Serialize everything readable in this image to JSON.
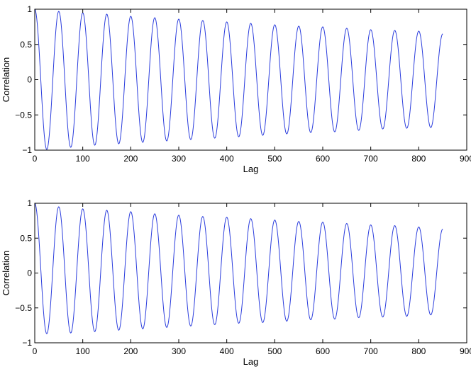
{
  "chart_data": [
    {
      "type": "line",
      "title": "",
      "xlabel": "Lag",
      "ylabel": "Correlation",
      "xlim": [
        0,
        900
      ],
      "ylim": [
        -1,
        1
      ],
      "xticks": [
        0,
        100,
        200,
        300,
        400,
        500,
        600,
        700,
        800,
        900
      ],
      "yticks": [
        -1,
        -0.5,
        0,
        0.5,
        1
      ],
      "xtick_labels": [
        "0",
        "100",
        "200",
        "300",
        "400",
        "500",
        "600",
        "700",
        "800",
        "900"
      ],
      "ytick_labels": [
        "−1",
        "−0.5",
        "0",
        "0.5",
        "1"
      ],
      "grid": false,
      "series": [
        {
          "color": "#2b3ddd",
          "x": [
            0,
            25,
            50,
            75,
            100,
            125,
            150,
            175,
            200,
            225,
            250,
            275,
            300,
            325,
            350,
            375,
            400,
            425,
            450,
            475,
            500,
            525,
            550,
            575,
            600,
            625,
            650,
            675,
            700,
            725,
            750,
            775,
            800,
            825,
            850
          ],
          "y": [
            1.0,
            -0.99,
            0.97,
            -0.96,
            0.95,
            -0.93,
            0.93,
            -0.91,
            0.9,
            -0.89,
            0.88,
            -0.87,
            0.86,
            -0.85,
            0.84,
            -0.83,
            0.82,
            -0.81,
            0.8,
            -0.79,
            0.78,
            -0.77,
            0.76,
            -0.75,
            0.75,
            -0.74,
            0.73,
            -0.72,
            0.71,
            -0.7,
            0.7,
            -0.69,
            0.69,
            -0.68,
            0.65
          ]
        }
      ]
    },
    {
      "type": "line",
      "title": "",
      "xlabel": "Lag",
      "ylabel": "Correlation",
      "xlim": [
        0,
        900
      ],
      "ylim": [
        -1,
        1
      ],
      "xticks": [
        0,
        100,
        200,
        300,
        400,
        500,
        600,
        700,
        800,
        900
      ],
      "yticks": [
        -1,
        -0.5,
        0,
        0.5,
        1
      ],
      "xtick_labels": [
        "0",
        "100",
        "200",
        "300",
        "400",
        "500",
        "600",
        "700",
        "800",
        "900"
      ],
      "ytick_labels": [
        "−1",
        "−0.5",
        "0",
        "0.5",
        "1"
      ],
      "grid": false,
      "series": [
        {
          "color": "#2b3ddd",
          "x": [
            0,
            25,
            50,
            75,
            100,
            125,
            150,
            175,
            200,
            225,
            250,
            275,
            300,
            325,
            350,
            375,
            400,
            425,
            450,
            475,
            500,
            525,
            550,
            575,
            600,
            625,
            650,
            675,
            700,
            725,
            750,
            775,
            800,
            825,
            850
          ],
          "y": [
            1.0,
            -0.87,
            0.95,
            -0.86,
            0.92,
            -0.84,
            0.9,
            -0.82,
            0.88,
            -0.8,
            0.85,
            -0.78,
            0.83,
            -0.76,
            0.81,
            -0.74,
            0.8,
            -0.72,
            0.78,
            -0.71,
            0.76,
            -0.69,
            0.74,
            -0.67,
            0.73,
            -0.66,
            0.71,
            -0.64,
            0.69,
            -0.63,
            0.68,
            -0.62,
            0.66,
            -0.6,
            0.63
          ]
        }
      ]
    }
  ]
}
